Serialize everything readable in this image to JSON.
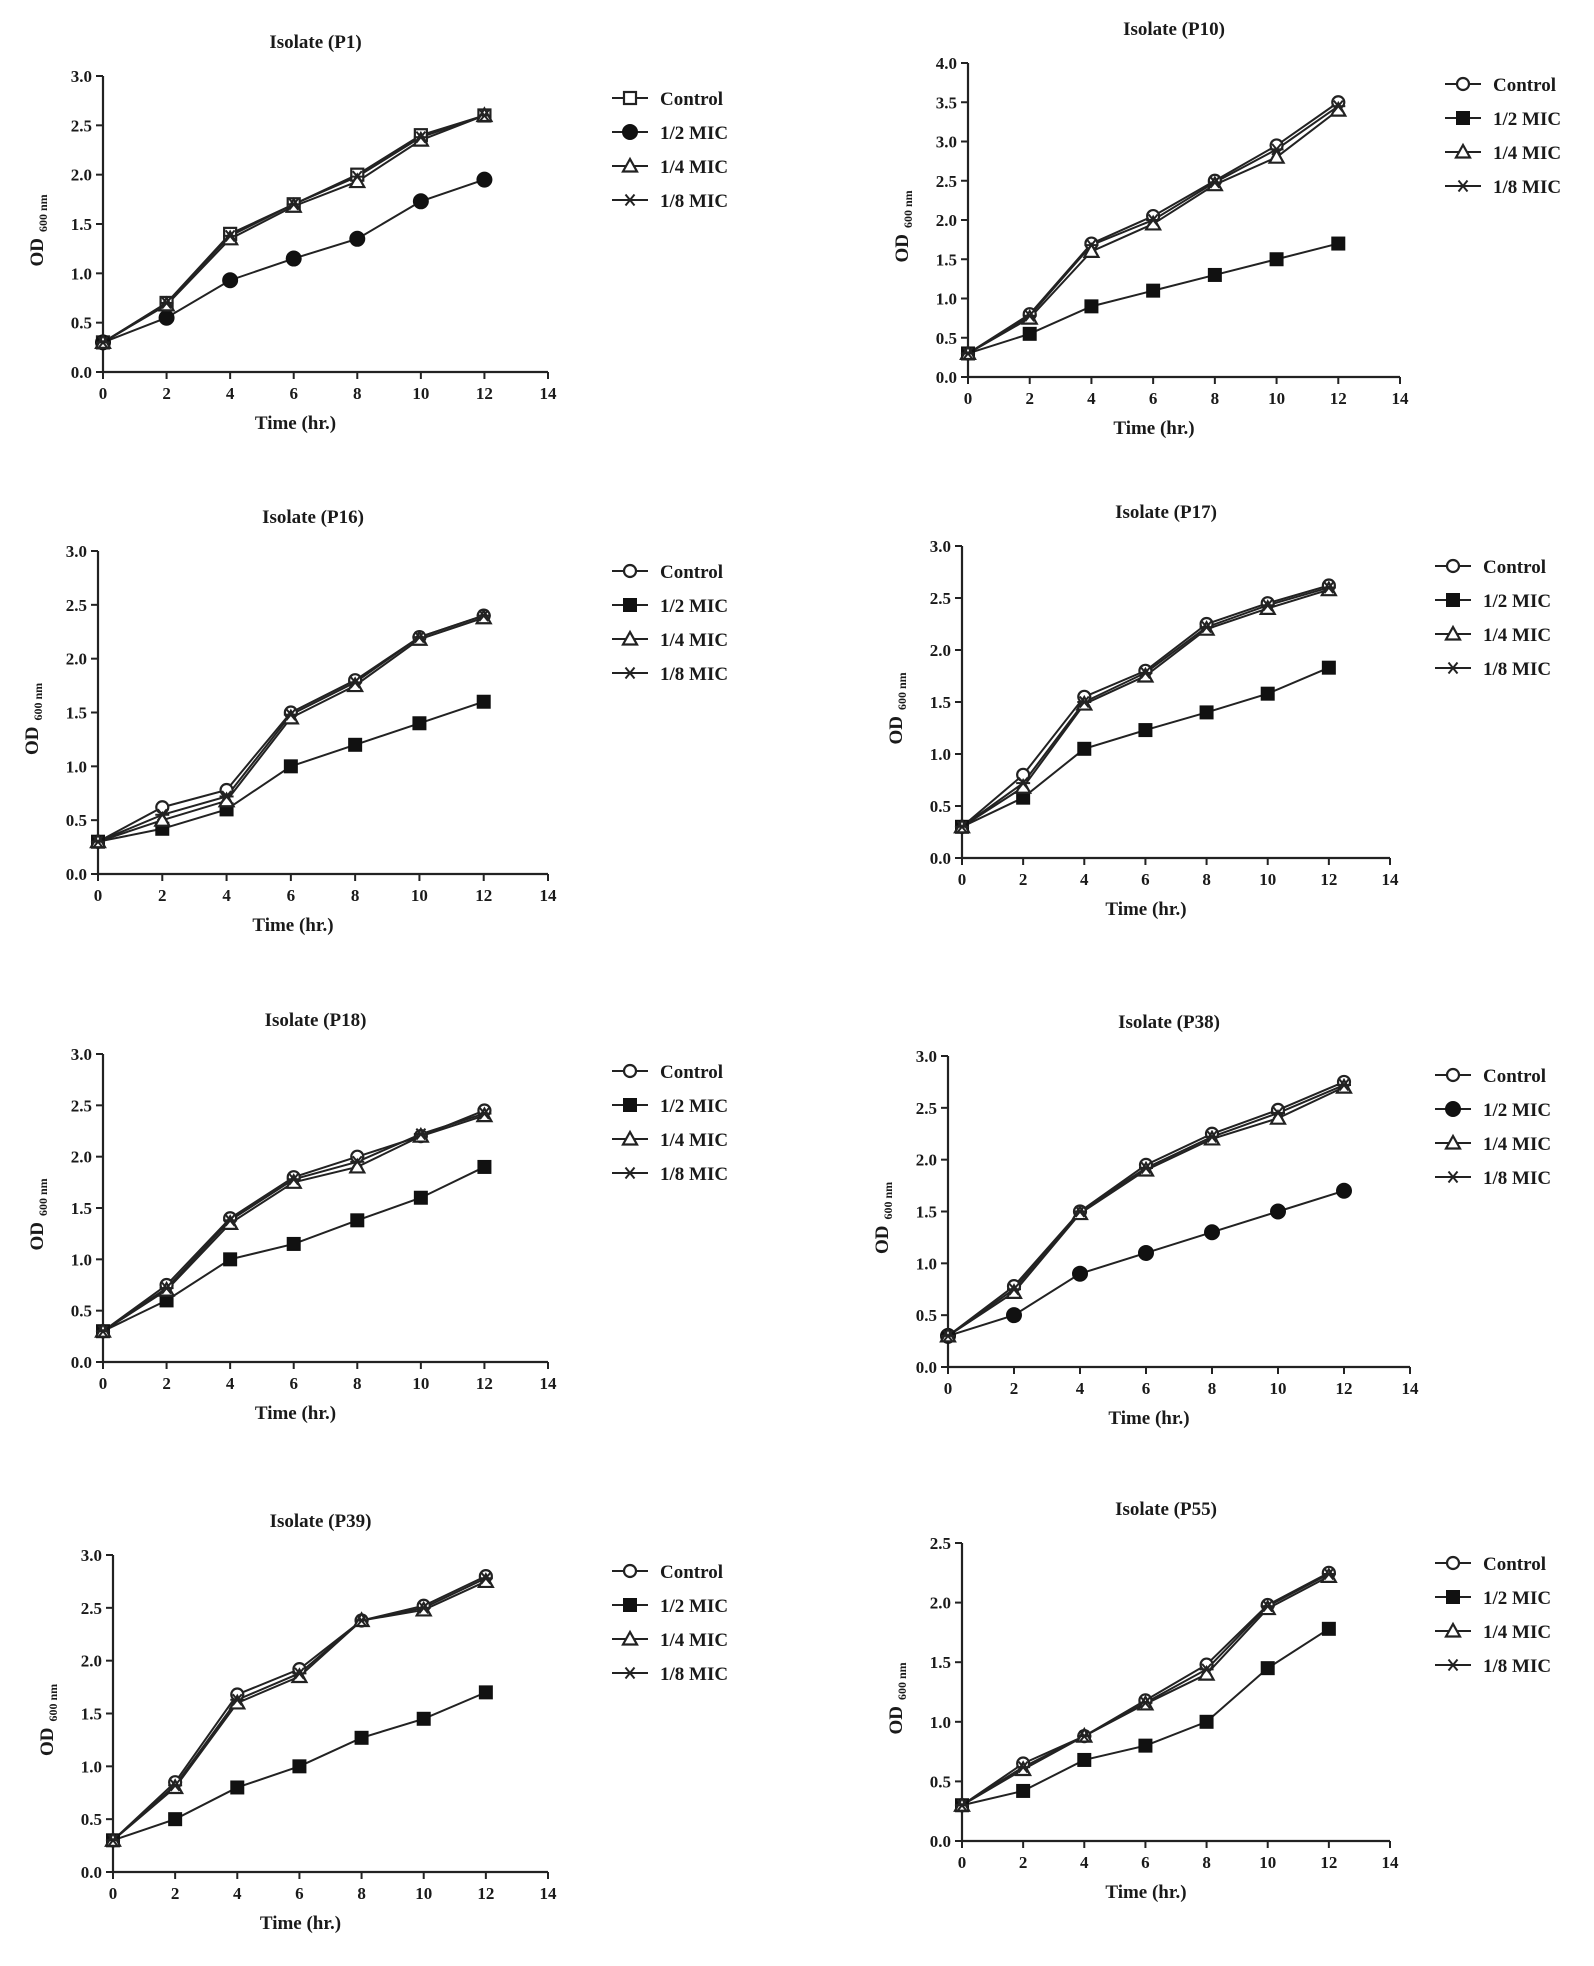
{
  "chart_data": [
    {
      "type": "line",
      "title": "Isolate (P1)",
      "xlabel": "Time (hr.)",
      "ylabel": "OD",
      "ylabel_sub": "600 nm",
      "xlim": [
        0,
        14
      ],
      "ylim": [
        0,
        3.0
      ],
      "x_ticks": [
        "0",
        "2",
        "4",
        "6",
        "8",
        "10",
        "12",
        "14"
      ],
      "y_ticks": [
        "0.0",
        "0.5",
        "1.0",
        "1.5",
        "2.0",
        "2.5",
        "3.0"
      ],
      "legend_position": "right",
      "x": [
        0,
        2,
        4,
        6,
        8,
        10,
        12
      ],
      "series": [
        {
          "name": "Control",
          "marker": "open-square",
          "values": [
            0.3,
            0.7,
            1.4,
            1.7,
            2.0,
            2.4,
            2.6
          ]
        },
        {
          "name": "1/2 MIC",
          "marker": "filled-circle",
          "values": [
            0.3,
            0.55,
            0.93,
            1.15,
            1.35,
            1.73,
            1.95
          ]
        },
        {
          "name": "1/4 MIC",
          "marker": "open-triangle",
          "values": [
            0.3,
            0.68,
            1.35,
            1.68,
            1.93,
            2.35,
            2.6
          ]
        },
        {
          "name": "1/8 MIC",
          "marker": "star",
          "values": [
            0.3,
            0.7,
            1.38,
            1.7,
            1.98,
            2.38,
            2.6
          ]
        }
      ]
    },
    {
      "type": "line",
      "title": "Isolate (P10)",
      "xlabel": "Time (hr.)",
      "ylabel": "OD",
      "ylabel_sub": "600 nm",
      "xlim": [
        0,
        14
      ],
      "ylim": [
        0,
        4.0
      ],
      "x_ticks": [
        "0",
        "2",
        "4",
        "6",
        "8",
        "10",
        "12",
        "14"
      ],
      "y_ticks": [
        "0.0",
        "0.5",
        "1.0",
        "1.5",
        "2.0",
        "2.5",
        "3.0",
        "3.5",
        "4.0"
      ],
      "legend_position": "right",
      "x": [
        0,
        2,
        4,
        6,
        8,
        10,
        12
      ],
      "series": [
        {
          "name": "Control",
          "marker": "open-circle",
          "values": [
            0.3,
            0.8,
            1.7,
            2.05,
            2.5,
            2.95,
            3.5
          ]
        },
        {
          "name": "1/2 MIC",
          "marker": "filled-square",
          "values": [
            0.3,
            0.55,
            0.9,
            1.1,
            1.3,
            1.5,
            1.7
          ]
        },
        {
          "name": "1/4 MIC",
          "marker": "open-triangle",
          "values": [
            0.3,
            0.75,
            1.6,
            1.95,
            2.45,
            2.8,
            3.4
          ]
        },
        {
          "name": "1/8 MIC",
          "marker": "star",
          "values": [
            0.3,
            0.78,
            1.68,
            2.0,
            2.48,
            2.9,
            3.45
          ]
        }
      ]
    },
    {
      "type": "line",
      "title": "Isolate (P16)",
      "xlabel": "Time (hr.)",
      "ylabel": "OD",
      "ylabel_sub": "600 nm",
      "xlim": [
        0,
        14
      ],
      "ylim": [
        0,
        3.0
      ],
      "x_ticks": [
        "0",
        "2",
        "4",
        "6",
        "8",
        "10",
        "12",
        "14"
      ],
      "y_ticks": [
        "0.0",
        "0.5",
        "1.0",
        "1.5",
        "2.0",
        "2.5",
        "3.0"
      ],
      "legend_position": "right",
      "x": [
        0,
        2,
        4,
        6,
        8,
        10,
        12
      ],
      "series": [
        {
          "name": "Control",
          "marker": "open-circle",
          "values": [
            0.3,
            0.62,
            0.78,
            1.5,
            1.8,
            2.2,
            2.4
          ]
        },
        {
          "name": "1/2 MIC",
          "marker": "filled-square",
          "values": [
            0.3,
            0.42,
            0.6,
            1.0,
            1.2,
            1.4,
            1.6
          ]
        },
        {
          "name": "1/4 MIC",
          "marker": "open-triangle",
          "values": [
            0.3,
            0.5,
            0.68,
            1.45,
            1.75,
            2.18,
            2.38
          ]
        },
        {
          "name": "1/8 MIC",
          "marker": "star",
          "values": [
            0.3,
            0.55,
            0.72,
            1.48,
            1.78,
            2.2,
            2.4
          ]
        }
      ]
    },
    {
      "type": "line",
      "title": "Isolate (P17)",
      "xlabel": "Time (hr.)",
      "ylabel": "OD",
      "ylabel_sub": "600 nm",
      "xlim": [
        0,
        14
      ],
      "ylim": [
        0,
        3.0
      ],
      "x_ticks": [
        "0",
        "2",
        "4",
        "6",
        "8",
        "10",
        "12",
        "14"
      ],
      "y_ticks": [
        "0.0",
        "0.5",
        "1.0",
        "1.5",
        "2.0",
        "2.5",
        "3.0"
      ],
      "legend_position": "right",
      "x": [
        0,
        2,
        4,
        6,
        8,
        10,
        12
      ],
      "series": [
        {
          "name": "Control",
          "marker": "open-circle",
          "values": [
            0.3,
            0.8,
            1.55,
            1.8,
            2.25,
            2.45,
            2.62
          ]
        },
        {
          "name": "1/2 MIC",
          "marker": "filled-square",
          "values": [
            0.3,
            0.58,
            1.05,
            1.23,
            1.4,
            1.58,
            1.83
          ]
        },
        {
          "name": "1/4 MIC",
          "marker": "open-triangle",
          "values": [
            0.3,
            0.68,
            1.48,
            1.75,
            2.2,
            2.4,
            2.58
          ]
        },
        {
          "name": "1/8 MIC",
          "marker": "star",
          "values": [
            0.3,
            0.72,
            1.5,
            1.78,
            2.22,
            2.43,
            2.6
          ]
        }
      ]
    },
    {
      "type": "line",
      "title": "Isolate (P18)",
      "xlabel": "Time (hr.)",
      "ylabel": "OD",
      "ylabel_sub": "600 nm",
      "xlim": [
        0,
        14
      ],
      "ylim": [
        0,
        3.0
      ],
      "x_ticks": [
        "0",
        "2",
        "4",
        "6",
        "8",
        "10",
        "12",
        "14"
      ],
      "y_ticks": [
        "0.0",
        "0.5",
        "1.0",
        "1.5",
        "2.0",
        "2.5",
        "3.0"
      ],
      "legend_position": "right",
      "x": [
        0,
        2,
        4,
        6,
        8,
        10,
        12
      ],
      "series": [
        {
          "name": "Control",
          "marker": "open-circle",
          "values": [
            0.3,
            0.75,
            1.4,
            1.8,
            2.0,
            2.2,
            2.45
          ]
        },
        {
          "name": "1/2 MIC",
          "marker": "filled-square",
          "values": [
            0.3,
            0.6,
            1.0,
            1.15,
            1.38,
            1.6,
            1.9
          ]
        },
        {
          "name": "1/4 MIC",
          "marker": "open-triangle",
          "values": [
            0.3,
            0.7,
            1.35,
            1.75,
            1.9,
            2.2,
            2.4
          ]
        },
        {
          "name": "1/8 MIC",
          "marker": "star",
          "values": [
            0.3,
            0.72,
            1.38,
            1.78,
            1.95,
            2.22,
            2.42
          ]
        }
      ]
    },
    {
      "type": "line",
      "title": "Isolate (P38)",
      "xlabel": "Time (hr.)",
      "ylabel": "OD",
      "ylabel_sub": "600 nm",
      "xlim": [
        0,
        14
      ],
      "ylim": [
        0,
        3.0
      ],
      "x_ticks": [
        "0",
        "2",
        "4",
        "6",
        "8",
        "10",
        "12",
        "14"
      ],
      "y_ticks": [
        "0.0",
        "0.5",
        "1.0",
        "1.5",
        "2.0",
        "2.5",
        "3.0"
      ],
      "legend_position": "right",
      "x": [
        0,
        2,
        4,
        6,
        8,
        10,
        12
      ],
      "series": [
        {
          "name": "Control",
          "marker": "open-circle",
          "values": [
            0.3,
            0.78,
            1.5,
            1.95,
            2.25,
            2.48,
            2.75
          ]
        },
        {
          "name": "1/2 MIC",
          "marker": "filled-circle",
          "values": [
            0.3,
            0.5,
            0.9,
            1.1,
            1.3,
            1.5,
            1.7
          ]
        },
        {
          "name": "1/4 MIC",
          "marker": "open-triangle",
          "values": [
            0.3,
            0.72,
            1.48,
            1.9,
            2.2,
            2.4,
            2.7
          ]
        },
        {
          "name": "1/8 MIC",
          "marker": "star",
          "values": [
            0.3,
            0.75,
            1.5,
            1.92,
            2.22,
            2.45,
            2.72
          ]
        }
      ]
    },
    {
      "type": "line",
      "title": "Isolate (P39)",
      "xlabel": "Time (hr.)",
      "ylabel": "OD",
      "ylabel_sub": "600 nm",
      "xlim": [
        0,
        14
      ],
      "ylim": [
        0,
        3.0
      ],
      "x_ticks": [
        "0",
        "2",
        "4",
        "6",
        "8",
        "10",
        "12",
        "14"
      ],
      "y_ticks": [
        "0.0",
        "0.5",
        "1.0",
        "1.5",
        "2.0",
        "2.5",
        "3.0"
      ],
      "legend_position": "right",
      "x": [
        0,
        2,
        4,
        6,
        8,
        10,
        12
      ],
      "series": [
        {
          "name": "Control",
          "marker": "open-circle",
          "values": [
            0.3,
            0.85,
            1.68,
            1.92,
            2.38,
            2.52,
            2.8
          ]
        },
        {
          "name": "1/2 MIC",
          "marker": "filled-square",
          "values": [
            0.3,
            0.5,
            0.8,
            1.0,
            1.27,
            1.45,
            1.7
          ]
        },
        {
          "name": "1/4 MIC",
          "marker": "open-triangle",
          "values": [
            0.3,
            0.8,
            1.6,
            1.85,
            2.38,
            2.48,
            2.75
          ]
        },
        {
          "name": "1/8 MIC",
          "marker": "star",
          "values": [
            0.3,
            0.82,
            1.63,
            1.88,
            2.38,
            2.5,
            2.78
          ]
        }
      ]
    },
    {
      "type": "line",
      "title": "Isolate (P55)",
      "xlabel": "Time (hr.)",
      "ylabel": "OD",
      "ylabel_sub": "600 nm",
      "xlim": [
        0,
        14
      ],
      "ylim": [
        0,
        2.5
      ],
      "x_ticks": [
        "0",
        "2",
        "4",
        "6",
        "8",
        "10",
        "12",
        "14"
      ],
      "y_ticks": [
        "0.0",
        "0.5",
        "1.0",
        "1.5",
        "2.0",
        "2.5"
      ],
      "legend_position": "right",
      "x": [
        0,
        2,
        4,
        6,
        8,
        10,
        12
      ],
      "series": [
        {
          "name": "Control",
          "marker": "open-circle",
          "values": [
            0.3,
            0.65,
            0.88,
            1.18,
            1.48,
            1.98,
            2.25
          ]
        },
        {
          "name": "1/2 MIC",
          "marker": "filled-square",
          "values": [
            0.3,
            0.42,
            0.68,
            0.8,
            1.0,
            1.45,
            1.78
          ]
        },
        {
          "name": "1/4 MIC",
          "marker": "open-triangle",
          "values": [
            0.3,
            0.6,
            0.88,
            1.15,
            1.4,
            1.95,
            2.22
          ]
        },
        {
          "name": "1/8 MIC",
          "marker": "star",
          "values": [
            0.3,
            0.62,
            0.88,
            1.16,
            1.44,
            1.97,
            2.24
          ]
        }
      ]
    }
  ]
}
